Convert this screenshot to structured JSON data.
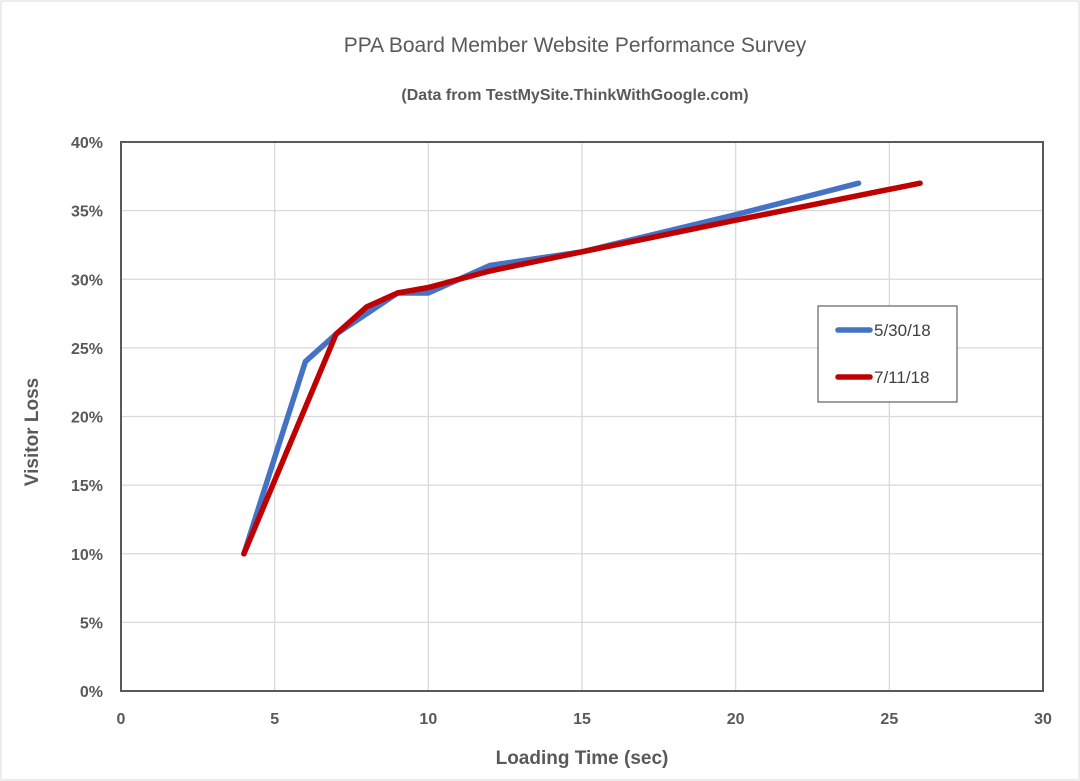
{
  "chart_data": {
    "type": "line",
    "title": "PPA Board Member Website Performance Survey",
    "subtitle": "(Data from TestMySite.ThinkWithGoogle.com)",
    "xlabel": "Loading Time (sec)",
    "ylabel": "Visitor Loss",
    "xlim": [
      0,
      30
    ],
    "ylim": [
      0,
      0.4
    ],
    "x_ticks": [
      0,
      5,
      10,
      15,
      20,
      25,
      30
    ],
    "x_tick_labels": [
      "0",
      "5",
      "10",
      "15",
      "20",
      "25",
      "30"
    ],
    "y_ticks": [
      0,
      0.05,
      0.1,
      0.15,
      0.2,
      0.25,
      0.3,
      0.35,
      0.4
    ],
    "y_tick_labels": [
      "0%",
      "5%",
      "10%",
      "15%",
      "20%",
      "25%",
      "30%",
      "35%",
      "40%"
    ],
    "grid": true,
    "legend_position": "right",
    "series": [
      {
        "name": "5/30/18",
        "color": "#4472C4",
        "x": [
          4,
          6,
          7,
          8,
          9,
          10,
          12,
          15,
          20,
          24
        ],
        "y": [
          0.1,
          0.24,
          0.26,
          0.275,
          0.29,
          0.29,
          0.31,
          0.32,
          0.347,
          0.37
        ]
      },
      {
        "name": "7/11/18",
        "color": "#C00000",
        "x": [
          4,
          7,
          8,
          9,
          10,
          12,
          15,
          20,
          26
        ],
        "y": [
          0.1,
          0.26,
          0.28,
          0.29,
          0.294,
          0.306,
          0.32,
          0.343,
          0.37
        ]
      }
    ]
  }
}
